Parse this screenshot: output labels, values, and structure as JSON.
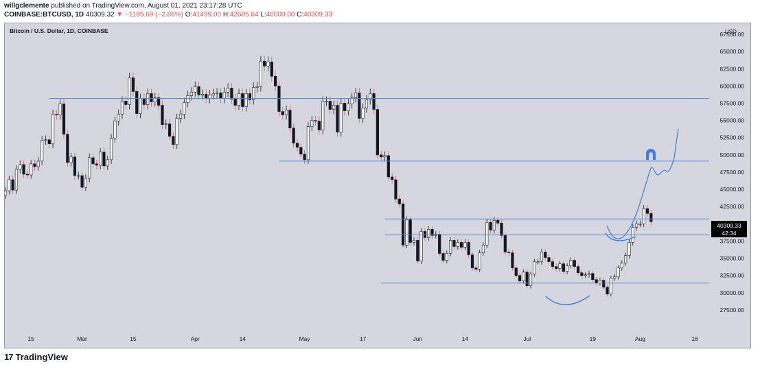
{
  "header": {
    "user": "willgclemente",
    "published": "published on TradingView.com, August 01, 2021 23:17:28 UTC",
    "symbol": "COINBASE:BTCUSD, 1D",
    "last": "40309.32",
    "change": "▼ −1185.69 (−2.86%)",
    "o_label": "O:",
    "o_value": "41499.00",
    "h_label": "H:",
    "h_value": "42605.64",
    "l_label": "L:",
    "l_value": "40000.00",
    "c_label": "C:",
    "c_value": "40309.33"
  },
  "footer": {
    "logo_glyph": "17",
    "brand": "TradingView"
  },
  "colors": {
    "background": "#d5d6de",
    "line": "#5b87e0",
    "drawing": "#3d7ee6",
    "bull": "#ffffff",
    "bear": "#131722",
    "wick_down": "#e05a5a",
    "price_label": "#000000"
  },
  "chart_data": {
    "type": "candlestick",
    "title": "Bitcoin / U.S. Dollar, 1D, COINBASE",
    "currency": "USD",
    "ylim": [
      25400,
      68000
    ],
    "y_ticks": [
      27500,
      30000,
      32500,
      35000,
      37500,
      40000,
      42500,
      45000,
      47500,
      50000,
      52500,
      55000,
      57500,
      60000,
      62500,
      65000,
      67500
    ],
    "y_tick_labels": [
      "27500.00",
      "30000.00",
      "32500.00",
      "35000.00",
      "37500.00",
      "40000.00",
      "42500.00",
      "45000.00",
      "47500.00",
      "50000.00",
      "52500.00",
      "55000.00",
      "57500.00",
      "60000.00",
      "62500.00",
      "65000.00",
      "67500.00"
    ],
    "x_start_date": "2021-02-08",
    "x_end_date": "2021-08-19",
    "x_ticks": [
      {
        "date": "2021-02-15",
        "label": "15"
      },
      {
        "date": "2021-03-01",
        "label": "Mar"
      },
      {
        "date": "2021-03-15",
        "label": "15"
      },
      {
        "date": "2021-04-01",
        "label": "Apr"
      },
      {
        "date": "2021-04-14",
        "label": "14"
      },
      {
        "date": "2021-05-01",
        "label": "May"
      },
      {
        "date": "2021-05-17",
        "label": "17"
      },
      {
        "date": "2021-06-01",
        "label": "Jun"
      },
      {
        "date": "2021-06-14",
        "label": "14"
      },
      {
        "date": "2021-07-01",
        "label": "Jul"
      },
      {
        "date": "2021-07-19",
        "label": "19"
      },
      {
        "date": "2021-08-01",
        "label": "Aug"
      },
      {
        "date": "2021-08-16",
        "label": "16"
      }
    ],
    "closes": [
      44800,
      46400,
      44900,
      47900,
      48600,
      47200,
      47100,
      48700,
      48300,
      49100,
      52100,
      52200,
      51600,
      55900,
      55800,
      57400,
      53000,
      48900,
      49700,
      47000,
      47000,
      45300,
      46600,
      49600,
      48700,
      48500,
      50400,
      48400,
      49300,
      52400,
      54900,
      55900,
      57800,
      57300,
      61200,
      59200,
      56000,
      58200,
      57300,
      58900,
      57700,
      58300,
      57200,
      54400,
      54500,
      52700,
      51500,
      55300,
      55900,
      57600,
      58600,
      59100,
      59900,
      58700,
      58800,
      58200,
      58700,
      58900,
      59000,
      58200,
      59100,
      59700,
      58100,
      57200,
      58900,
      57000,
      58900,
      58000,
      59800,
      59900,
      63600,
      62900,
      63500,
      61400,
      60000,
      56300,
      55800,
      56500,
      53900,
      51700,
      51100,
      50100,
      49300,
      54100,
      55000,
      54900,
      53600,
      57800,
      57800,
      56600,
      57200,
      53300,
      57500,
      56400,
      57400,
      58300,
      59000,
      55300,
      56800,
      58000,
      58900,
      56600,
      50000,
      49700,
      49900,
      46800,
      46400,
      43600,
      42900,
      36900,
      40600,
      37300,
      37600,
      34600,
      38900,
      38000,
      39200,
      38300,
      38500,
      35700,
      34700,
      35700,
      37600,
      36700,
      37300,
      36600,
      37300,
      35500,
      33600,
      33400,
      35800,
      36900,
      40200,
      39100,
      40500,
      40100,
      38300,
      35900,
      35800,
      33600,
      32500,
      31700,
      33000,
      31000,
      32700,
      34500,
      34500,
      35900,
      35100,
      34500,
      33800,
      33500,
      34200,
      33100,
      33900,
      34700,
      33800,
      32900,
      32500,
      32600,
      32800,
      31900,
      31400,
      31800,
      30800,
      29800,
      32100,
      32300,
      33600,
      34300,
      35400,
      37300,
      39500,
      40000,
      40000,
      42200,
      41500,
      40309
    ]
  },
  "chart": {
    "instrument_label": "Bitcoin / U.S. Dollar, 1D, COINBASE",
    "currency": "USD",
    "price_label": "40309.33",
    "countdown": "42:34"
  }
}
